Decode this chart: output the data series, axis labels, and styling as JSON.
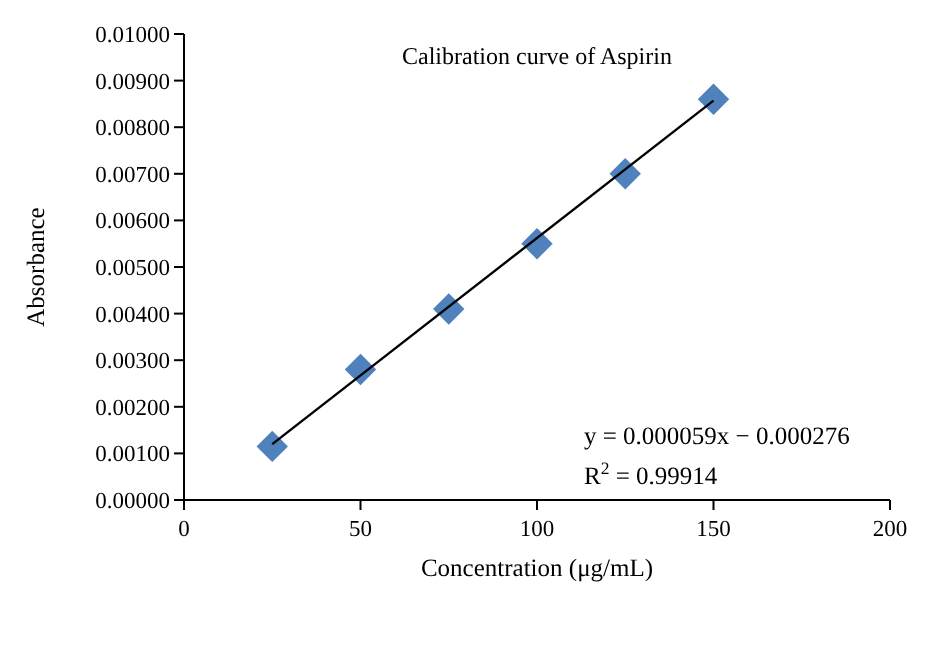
{
  "chart_data": {
    "type": "scatter",
    "title": "Calibration curve of Aspirin",
    "xlabel": "Concentration (μg/mL)",
    "ylabel": "Absorbance",
    "x": [
      25,
      50,
      75,
      100,
      125,
      150
    ],
    "series": [
      {
        "color": "#4f81bd",
        "marker": "diamond",
        "values": [
          0.00115,
          0.0028,
          0.0041,
          0.0055,
          0.007,
          0.0086
        ]
      },
      {
        "type": "line",
        "color": "#000000",
        "x": [
          25,
          150
        ],
        "values": [
          0.0012,
          0.00857
        ],
        "marker": "none",
        "line_style": "solid"
      }
    ],
    "xlim": [
      0,
      200
    ],
    "xticks": [
      0,
      50,
      100,
      150,
      200
    ],
    "ylim": [
      0,
      0.01
    ],
    "yticks": [
      {
        "value": 0,
        "label": "0.00000"
      },
      {
        "value": 0.001,
        "label": "0.00100"
      },
      {
        "value": 0.002,
        "label": "0.00200"
      },
      {
        "value": 0.003,
        "label": "0.00300"
      },
      {
        "value": 0.004,
        "label": "0.00400"
      },
      {
        "value": 0.005,
        "label": "0.00500"
      },
      {
        "value": 0.006,
        "label": "0.00600"
      },
      {
        "value": 0.007,
        "label": "0.00700"
      },
      {
        "value": 0.008,
        "label": "0.00800"
      },
      {
        "value": 0.009,
        "label": "0.00900"
      },
      {
        "value": 0.01,
        "label": "0.01000"
      }
    ],
    "grid": false,
    "annotations": [
      "y = 0.000059x − 0.000276",
      "R$^{2}$ = 0.99914"
    ]
  }
}
